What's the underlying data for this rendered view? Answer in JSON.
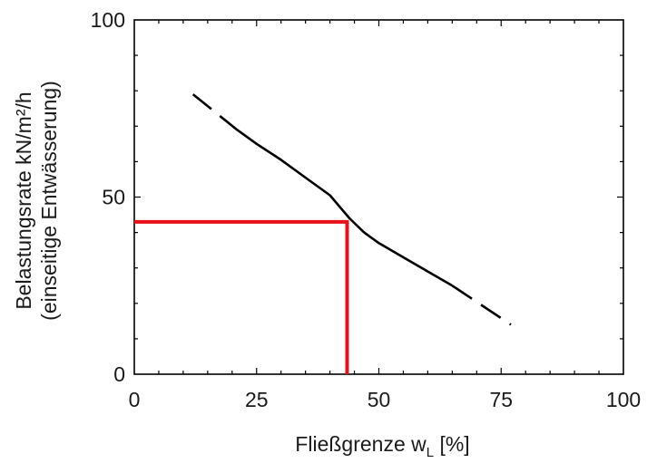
{
  "chart_data": {
    "type": "line",
    "title": "",
    "xlabel": {
      "main": "Fließgrenze w",
      "subscript": "L",
      "unit": " [%]"
    },
    "ylabel": {
      "line1": "Belastungsrate kN/m²/h",
      "line2": "(einseitige Entwässerung)"
    },
    "xlim": [
      0,
      100
    ],
    "ylim": [
      0,
      100
    ],
    "x_ticks": [
      0,
      25,
      50,
      75,
      100
    ],
    "y_ticks": [
      0,
      50,
      100
    ],
    "grid": false,
    "series": [
      {
        "style": "dashed",
        "color": "#000000",
        "x": [
          12,
          21
        ],
        "y": [
          79,
          69
        ]
      },
      {
        "style": "solid",
        "color": "#000000",
        "x": [
          21,
          25,
          30,
          35,
          40,
          44,
          47,
          50,
          55,
          60,
          65
        ],
        "y": [
          69,
          65,
          60.5,
          55.5,
          50.5,
          44,
          40,
          37,
          33,
          29,
          25
        ]
      },
      {
        "style": "dashed",
        "color": "#000000",
        "x": [
          65,
          77
        ],
        "y": [
          25,
          14
        ]
      }
    ],
    "reference_lines": [
      {
        "color": "#e8101a",
        "points": [
          [
            0,
            43
          ],
          [
            43.5,
            43
          ],
          [
            43.5,
            0
          ]
        ]
      }
    ]
  }
}
